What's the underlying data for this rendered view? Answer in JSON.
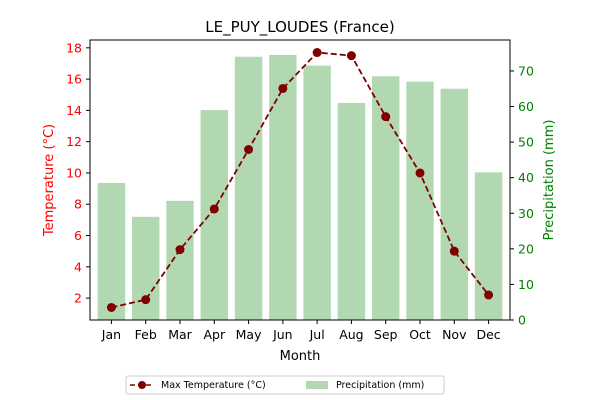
{
  "chart_data": {
    "type": "bar+line",
    "title": "LE_PUY_LOUDES (France)",
    "xlabel": "Month",
    "categories": [
      "Jan",
      "Feb",
      "Mar",
      "Apr",
      "May",
      "Jun",
      "Jul",
      "Aug",
      "Sep",
      "Oct",
      "Nov",
      "Dec"
    ],
    "y_left": {
      "label": "Temperature (°C)",
      "ylim": [
        0.6,
        18.5
      ],
      "ticks": [
        "2",
        "4",
        "6",
        "8",
        "10",
        "12",
        "14",
        "16",
        "18"
      ],
      "color": "#ff0000"
    },
    "y_right": {
      "label": "Precipitation (mm)",
      "ylim": [
        0,
        78.7
      ],
      "ticks": [
        "0",
        "10",
        "20",
        "30",
        "40",
        "50",
        "60",
        "70"
      ],
      "color": "#008000"
    },
    "series": [
      {
        "name": "Max Temperature (°C)",
        "kind": "line",
        "axis": "left",
        "color": "#800000",
        "style": "dashed",
        "marker": "circle",
        "values": [
          1.4,
          1.9,
          5.1,
          7.7,
          11.5,
          15.4,
          17.7,
          17.5,
          13.6,
          10.0,
          5.0,
          2.2
        ]
      },
      {
        "name": "Precipitation (mm)",
        "kind": "bar",
        "axis": "right",
        "color": "#b2d8b2",
        "values": [
          38.5,
          29.0,
          33.5,
          59.0,
          74.0,
          74.5,
          71.5,
          61.0,
          68.5,
          67.0,
          65.0,
          41.5
        ]
      }
    ],
    "legend": {
      "placement": "bottom-center",
      "columns": 2
    },
    "grid": false
  }
}
